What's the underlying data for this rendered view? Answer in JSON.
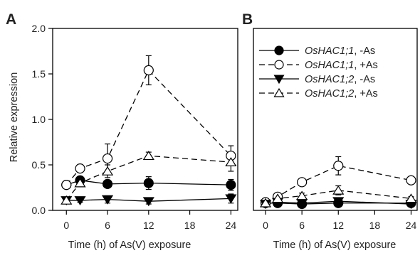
{
  "chart_data": [
    {
      "type": "line",
      "panel_label": "A",
      "xlabel": "Time (h) of As(V) exposure",
      "ylabel": "Relative expression",
      "x": [
        0,
        2,
        6,
        12,
        24
      ],
      "xticks": [
        "0",
        "6",
        "12",
        "18",
        "24"
      ],
      "xtick_values": [
        0,
        6,
        12,
        18,
        24
      ],
      "xlim": [
        -2,
        25
      ],
      "yticks": [
        "0.0",
        "0.5",
        "1.0",
        "1.5",
        "2.0"
      ],
      "ytick_values": [
        0.0,
        0.5,
        1.0,
        1.5,
        2.0
      ],
      "ylim": [
        0,
        2.0
      ],
      "series": [
        {
          "values": [
            0.28,
            0.33,
            0.29,
            0.3,
            0.28
          ],
          "errors": [
            0.03,
            0.03,
            0.04,
            0.07,
            0.06
          ],
          "marker": "circle",
          "fill": "filled",
          "line": "solid"
        },
        {
          "values": [
            0.28,
            0.46,
            0.57,
            1.54,
            0.6
          ],
          "errors": [
            0.04,
            0.04,
            0.16,
            0.16,
            0.11
          ],
          "marker": "circle",
          "fill": "open",
          "line": "dashed"
        },
        {
          "values": [
            0.11,
            0.11,
            0.12,
            0.1,
            0.13
          ],
          "errors": [
            0.02,
            0.02,
            0.04,
            0.03,
            0.05
          ],
          "marker": "triangle-down",
          "fill": "filled",
          "line": "solid"
        },
        {
          "values": [
            0.11,
            0.3,
            0.43,
            0.6,
            0.53
          ],
          "errors": [
            0.03,
            0.03,
            0.07,
            0.04,
            0.1
          ],
          "marker": "triangle-up",
          "fill": "open",
          "line": "dashed"
        }
      ]
    },
    {
      "type": "line",
      "panel_label": "B",
      "xlabel": "Time (h) of As(V) exposure",
      "ylabel": "",
      "x": [
        0,
        2,
        6,
        12,
        24
      ],
      "xticks": [
        "0",
        "6",
        "12",
        "18",
        "24"
      ],
      "xtick_values": [
        0,
        6,
        12,
        18,
        24
      ],
      "xlim": [
        -2,
        25
      ],
      "ylim": [
        0,
        2.0
      ],
      "series": [
        {
          "values": [
            0.08,
            0.08,
            0.07,
            0.08,
            0.08
          ],
          "errors": [
            0.02,
            0.02,
            0.02,
            0.03,
            0.02
          ],
          "marker": "circle",
          "fill": "filled",
          "line": "solid"
        },
        {
          "values": [
            0.09,
            0.15,
            0.31,
            0.49,
            0.33
          ],
          "errors": [
            0.02,
            0.03,
            0.04,
            0.1,
            0.03
          ],
          "marker": "circle",
          "fill": "open",
          "line": "dashed"
        },
        {
          "values": [
            0.07,
            0.09,
            0.08,
            0.1,
            0.07
          ],
          "errors": [
            0.02,
            0.02,
            0.02,
            0.02,
            0.02
          ],
          "marker": "triangle-down",
          "fill": "filled",
          "line": "solid"
        },
        {
          "values": [
            0.08,
            0.13,
            0.16,
            0.22,
            0.13
          ],
          "errors": [
            0.02,
            0.02,
            0.03,
            0.05,
            0.02
          ],
          "marker": "triangle-up",
          "fill": "open",
          "line": "dashed"
        }
      ]
    }
  ],
  "legend": {
    "placement": "top-left of panel B",
    "entries": [
      {
        "gene": "OsHAC1;1",
        "treatment": ", -As"
      },
      {
        "gene": "OsHAC1;1",
        "treatment": ", +As"
      },
      {
        "gene": "OsHAC1;2",
        "treatment": ", -As"
      },
      {
        "gene": "OsHAC1;2",
        "treatment": ", +As"
      }
    ]
  },
  "colors": {
    "ink": "#000000",
    "open_fill": "#ffffff"
  }
}
